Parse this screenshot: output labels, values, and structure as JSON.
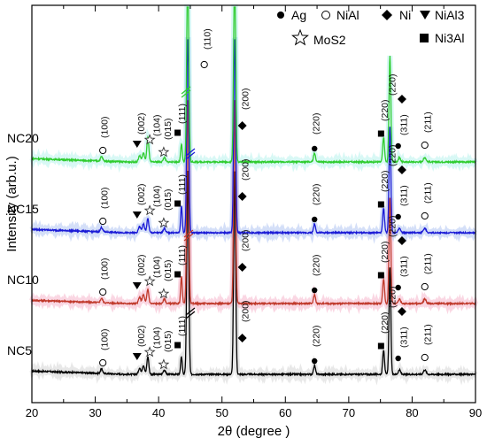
{
  "chart_data": {
    "type": "line",
    "xlabel": "2θ (degree )",
    "ylabel": "Intensity (arb.u.)",
    "xlim": [
      20,
      90
    ],
    "x_ticks": [
      20,
      30,
      40,
      50,
      60,
      70,
      80,
      90
    ],
    "y_ticks_shown": false,
    "legend": [
      {
        "marker": "filled-circle",
        "label": "Ag"
      },
      {
        "marker": "open-circle",
        "label": "NiAl"
      },
      {
        "marker": "filled-diamond",
        "label": "Ni"
      },
      {
        "marker": "filled-triangle-down",
        "label": "NiAl3"
      },
      {
        "marker": "open-star",
        "label": "MoS2"
      },
      {
        "marker": "filled-square",
        "label": "Ni3Al"
      }
    ],
    "peak_positions": [
      {
        "two_theta": 31.0,
        "phase": "NiAl",
        "hkl": "(100)"
      },
      {
        "two_theta": 37.0,
        "phase": "NiAl3",
        "hkl": "(002)"
      },
      {
        "two_theta": 38.5,
        "phase": "MoS2",
        "hkl": "(104)"
      },
      {
        "two_theta": 41.0,
        "phase": "MoS2",
        "hkl": "(015)"
      },
      {
        "two_theta": 43.6,
        "phase": "Ni3Al",
        "hkl": "(111)"
      },
      {
        "two_theta": 44.6,
        "phase": "NiAl",
        "hkl": "(110)"
      },
      {
        "two_theta": 52.0,
        "phase": "Ni",
        "hkl": "(200)"
      },
      {
        "two_theta": 64.6,
        "phase": "Ag",
        "hkl": "(220)"
      },
      {
        "two_theta": 75.5,
        "phase": "Ni3Al",
        "hkl": "(220)"
      },
      {
        "two_theta": 76.5,
        "phase": "Ni",
        "hkl": "(220)"
      },
      {
        "two_theta": 77.8,
        "phase": "Ag",
        "hkl": "(311)"
      },
      {
        "two_theta": 82.0,
        "phase": "NiAl",
        "hkl": "(211)"
      }
    ],
    "series": [
      {
        "name": "NC5",
        "color": "#000000",
        "baseline": 0.0
      },
      {
        "name": "NC10",
        "color": "#c0392b",
        "baseline": 1.0
      },
      {
        "name": "NC15",
        "color": "#1a1ad6",
        "baseline": 2.0
      },
      {
        "name": "NC20",
        "color": "#2ecc2e",
        "baseline": 3.0
      }
    ],
    "annotations": {
      "label_100": "(100)",
      "label_002": "(002)",
      "label_104": "(104)",
      "label_015": "(015)",
      "label_111": "(111)",
      "label_110": "(110)",
      "label_200": "(200)",
      "label_220": "(220)",
      "label_311": "(311)",
      "label_211": "(211)"
    }
  }
}
